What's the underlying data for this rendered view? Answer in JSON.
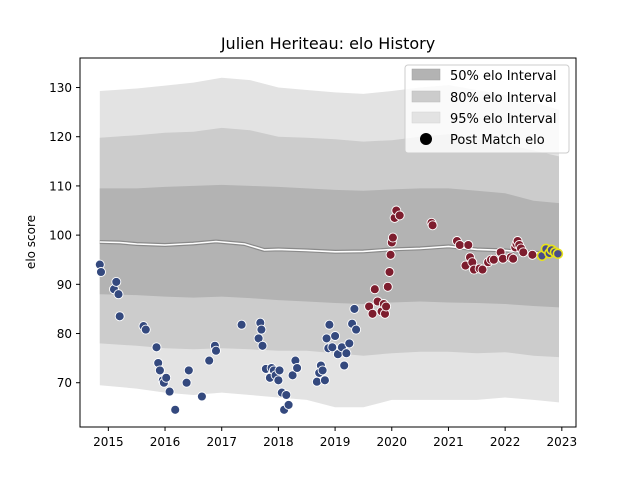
{
  "chart_data": {
    "type": "scatter",
    "title": "Julien Heriteau: elo History",
    "xlabel": "",
    "ylabel": "elo score",
    "xlim": [
      2014.5,
      2023.25
    ],
    "ylim": [
      61,
      136
    ],
    "x_ticks": [
      2015,
      2016,
      2017,
      2018,
      2019,
      2020,
      2021,
      2022,
      2023
    ],
    "y_ticks": [
      70,
      80,
      90,
      100,
      110,
      120,
      130
    ],
    "grid": false,
    "legend_position": "top-right",
    "legend": [
      {
        "label": "50% elo Interval",
        "kind": "band",
        "color": "#b3b3b3"
      },
      {
        "label": "80% elo Interval",
        "kind": "band",
        "color": "#cccccc"
      },
      {
        "label": "95% elo Interval",
        "kind": "band",
        "color": "#e3e3e3"
      },
      {
        "label": "Post Match elo",
        "kind": "marker",
        "color": "#000000"
      }
    ],
    "colors": {
      "early_matches": "#34497e",
      "late_matches": "#7d1d2e",
      "latest_matches": "#4a4c8a",
      "latest_edge": "#e8e31a",
      "band_50": "#b3b3b3",
      "band_80": "#cccccc",
      "band_95": "#e3e3e3",
      "rating_line": "#ffffff",
      "rating_shadow": "#8a8a8a"
    },
    "rating_line": {
      "x": [
        2014.85,
        2015.2,
        2015.5,
        2016.0,
        2016.5,
        2016.9,
        2017.4,
        2017.75,
        2018.0,
        2018.5,
        2019.0,
        2019.5,
        2020.0,
        2020.5,
        2021.0,
        2021.5,
        2022.0,
        2022.5,
        2022.95
      ],
      "y": [
        98.6,
        98.5,
        98.2,
        98.0,
        98.3,
        98.7,
        98.2,
        97.0,
        97.1,
        96.9,
        96.6,
        96.7,
        97.1,
        97.3,
        97.7,
        97.1,
        96.9,
        96.4,
        96.2
      ]
    },
    "band_95": {
      "x": [
        2014.85,
        2015.5,
        2016.0,
        2016.5,
        2017.0,
        2017.5,
        2018.0,
        2018.5,
        2019.0,
        2019.5,
        2020.0,
        2020.5,
        2021.0,
        2021.5,
        2022.0,
        2022.5,
        2022.95
      ],
      "upper": [
        129.3,
        129.8,
        130.4,
        131.0,
        132.0,
        131.5,
        130.0,
        129.5,
        129.0,
        128.7,
        129.3,
        130.0,
        130.5,
        129.5,
        128.5,
        127.0,
        125.5
      ],
      "lower": [
        69.5,
        68.8,
        68.0,
        67.5,
        68.0,
        67.5,
        67.0,
        66.5,
        65.0,
        65.0,
        66.5,
        66.5,
        66.5,
        66.5,
        67.0,
        66.5,
        66.0
      ]
    },
    "band_80": {
      "x": [
        2014.85,
        2015.5,
        2016.0,
        2016.5,
        2017.0,
        2017.5,
        2018.0,
        2018.5,
        2019.0,
        2019.5,
        2020.0,
        2020.5,
        2021.0,
        2021.5,
        2022.0,
        2022.5,
        2022.95
      ],
      "upper": [
        119.8,
        120.3,
        120.8,
        121.0,
        121.8,
        121.3,
        120.0,
        119.8,
        119.5,
        119.0,
        119.3,
        120.0,
        120.5,
        119.5,
        118.5,
        117.2,
        116.0
      ],
      "lower": [
        78.0,
        77.5,
        77.0,
        76.8,
        77.0,
        76.8,
        76.5,
        76.5,
        76.0,
        75.5,
        76.0,
        76.3,
        76.3,
        76.0,
        76.2,
        75.5,
        75.2
      ]
    },
    "band_50": {
      "x": [
        2014.85,
        2015.5,
        2016.0,
        2016.5,
        2017.0,
        2017.5,
        2018.0,
        2018.5,
        2019.0,
        2019.5,
        2020.0,
        2020.5,
        2021.0,
        2021.5,
        2022.0,
        2022.5,
        2022.95
      ],
      "upper": [
        109.5,
        109.5,
        109.8,
        110.0,
        110.2,
        110.0,
        109.8,
        109.5,
        109.2,
        109.0,
        109.3,
        109.5,
        109.5,
        109.0,
        108.5,
        107.0,
        106.5
      ],
      "lower": [
        88.0,
        87.8,
        87.5,
        87.3,
        87.5,
        87.2,
        86.8,
        86.5,
        86.2,
        86.0,
        86.3,
        86.5,
        86.3,
        86.2,
        86.0,
        85.6,
        85.3
      ]
    },
    "series": [
      {
        "group": "early_matches",
        "points": [
          [
            2014.85,
            94.0
          ],
          [
            2014.87,
            92.5
          ],
          [
            2015.1,
            89.0
          ],
          [
            2015.14,
            90.5
          ],
          [
            2015.18,
            88.0
          ],
          [
            2015.2,
            83.5
          ],
          [
            2015.62,
            81.5
          ],
          [
            2015.66,
            80.8
          ],
          [
            2015.85,
            77.2
          ],
          [
            2015.88,
            74.0
          ],
          [
            2015.91,
            72.5
          ],
          [
            2015.96,
            70.5
          ],
          [
            2015.98,
            70.0
          ],
          [
            2016.02,
            71.0
          ],
          [
            2016.08,
            68.2
          ],
          [
            2016.18,
            64.5
          ],
          [
            2016.38,
            70.0
          ],
          [
            2016.42,
            72.5
          ],
          [
            2016.65,
            67.2
          ],
          [
            2016.78,
            74.5
          ],
          [
            2016.88,
            77.5
          ],
          [
            2016.9,
            76.5
          ],
          [
            2017.35,
            81.8
          ],
          [
            2017.65,
            79.0
          ],
          [
            2017.68,
            82.2
          ],
          [
            2017.7,
            80.8
          ],
          [
            2017.72,
            77.5
          ],
          [
            2017.78,
            72.8
          ],
          [
            2017.85,
            71.0
          ],
          [
            2017.88,
            73.0
          ],
          [
            2017.92,
            72.5
          ],
          [
            2017.95,
            71.5
          ],
          [
            2018.0,
            70.5
          ],
          [
            2018.02,
            72.5
          ],
          [
            2018.06,
            68.0
          ],
          [
            2018.1,
            64.5
          ],
          [
            2018.14,
            67.5
          ],
          [
            2018.18,
            65.5
          ],
          [
            2018.25,
            71.5
          ],
          [
            2018.3,
            74.5
          ],
          [
            2018.33,
            73.0
          ],
          [
            2018.68,
            70.2
          ],
          [
            2018.72,
            72.0
          ],
          [
            2018.75,
            73.5
          ],
          [
            2018.78,
            72.5
          ],
          [
            2018.82,
            70.5
          ],
          [
            2018.85,
            79.0
          ],
          [
            2018.88,
            77.0
          ],
          [
            2018.9,
            81.8
          ],
          [
            2018.95,
            77.2
          ],
          [
            2019.0,
            79.5
          ],
          [
            2019.05,
            75.8
          ],
          [
            2019.12,
            77.2
          ],
          [
            2019.16,
            73.5
          ],
          [
            2019.2,
            76.0
          ],
          [
            2019.25,
            78.0
          ],
          [
            2019.3,
            82.0
          ],
          [
            2019.34,
            85.0
          ],
          [
            2019.37,
            80.8
          ]
        ]
      },
      {
        "group": "late_matches",
        "points": [
          [
            2019.6,
            85.5
          ],
          [
            2019.66,
            84.0
          ],
          [
            2019.7,
            89.0
          ],
          [
            2019.75,
            86.5
          ],
          [
            2019.82,
            84.5
          ],
          [
            2019.86,
            86.0
          ],
          [
            2019.88,
            84.0
          ],
          [
            2019.9,
            85.5
          ],
          [
            2019.93,
            89.5
          ],
          [
            2019.96,
            92.5
          ],
          [
            2019.98,
            96.0
          ],
          [
            2020.0,
            98.5
          ],
          [
            2020.02,
            99.5
          ],
          [
            2020.05,
            103.5
          ],
          [
            2020.08,
            105.0
          ],
          [
            2020.14,
            104.0
          ],
          [
            2020.7,
            102.5
          ],
          [
            2020.72,
            102.0
          ],
          [
            2021.15,
            98.8
          ],
          [
            2021.2,
            98.0
          ],
          [
            2021.3,
            93.8
          ],
          [
            2021.35,
            98.0
          ],
          [
            2021.38,
            95.5
          ],
          [
            2021.42,
            94.5
          ],
          [
            2021.45,
            93.0
          ],
          [
            2021.55,
            93.2
          ],
          [
            2021.6,
            93.0
          ],
          [
            2021.7,
            94.5
          ],
          [
            2021.75,
            95.0
          ],
          [
            2021.8,
            95.0
          ],
          [
            2021.92,
            96.5
          ],
          [
            2021.96,
            95.2
          ],
          [
            2022.1,
            95.5
          ],
          [
            2022.14,
            95.2
          ],
          [
            2022.18,
            97.5
          ],
          [
            2022.2,
            98.2
          ],
          [
            2022.22,
            98.8
          ],
          [
            2022.25,
            98.0
          ],
          [
            2022.28,
            97.3
          ],
          [
            2022.32,
            96.5
          ],
          [
            2022.48,
            96.0
          ]
        ]
      },
      {
        "group": "latest_matches",
        "points": [
          [
            2022.65,
            95.8
          ],
          [
            2022.72,
            97.2
          ],
          [
            2022.78,
            96.3
          ],
          [
            2022.82,
            97.0
          ],
          [
            2022.88,
            96.5
          ],
          [
            2022.93,
            96.2
          ]
        ]
      }
    ]
  }
}
